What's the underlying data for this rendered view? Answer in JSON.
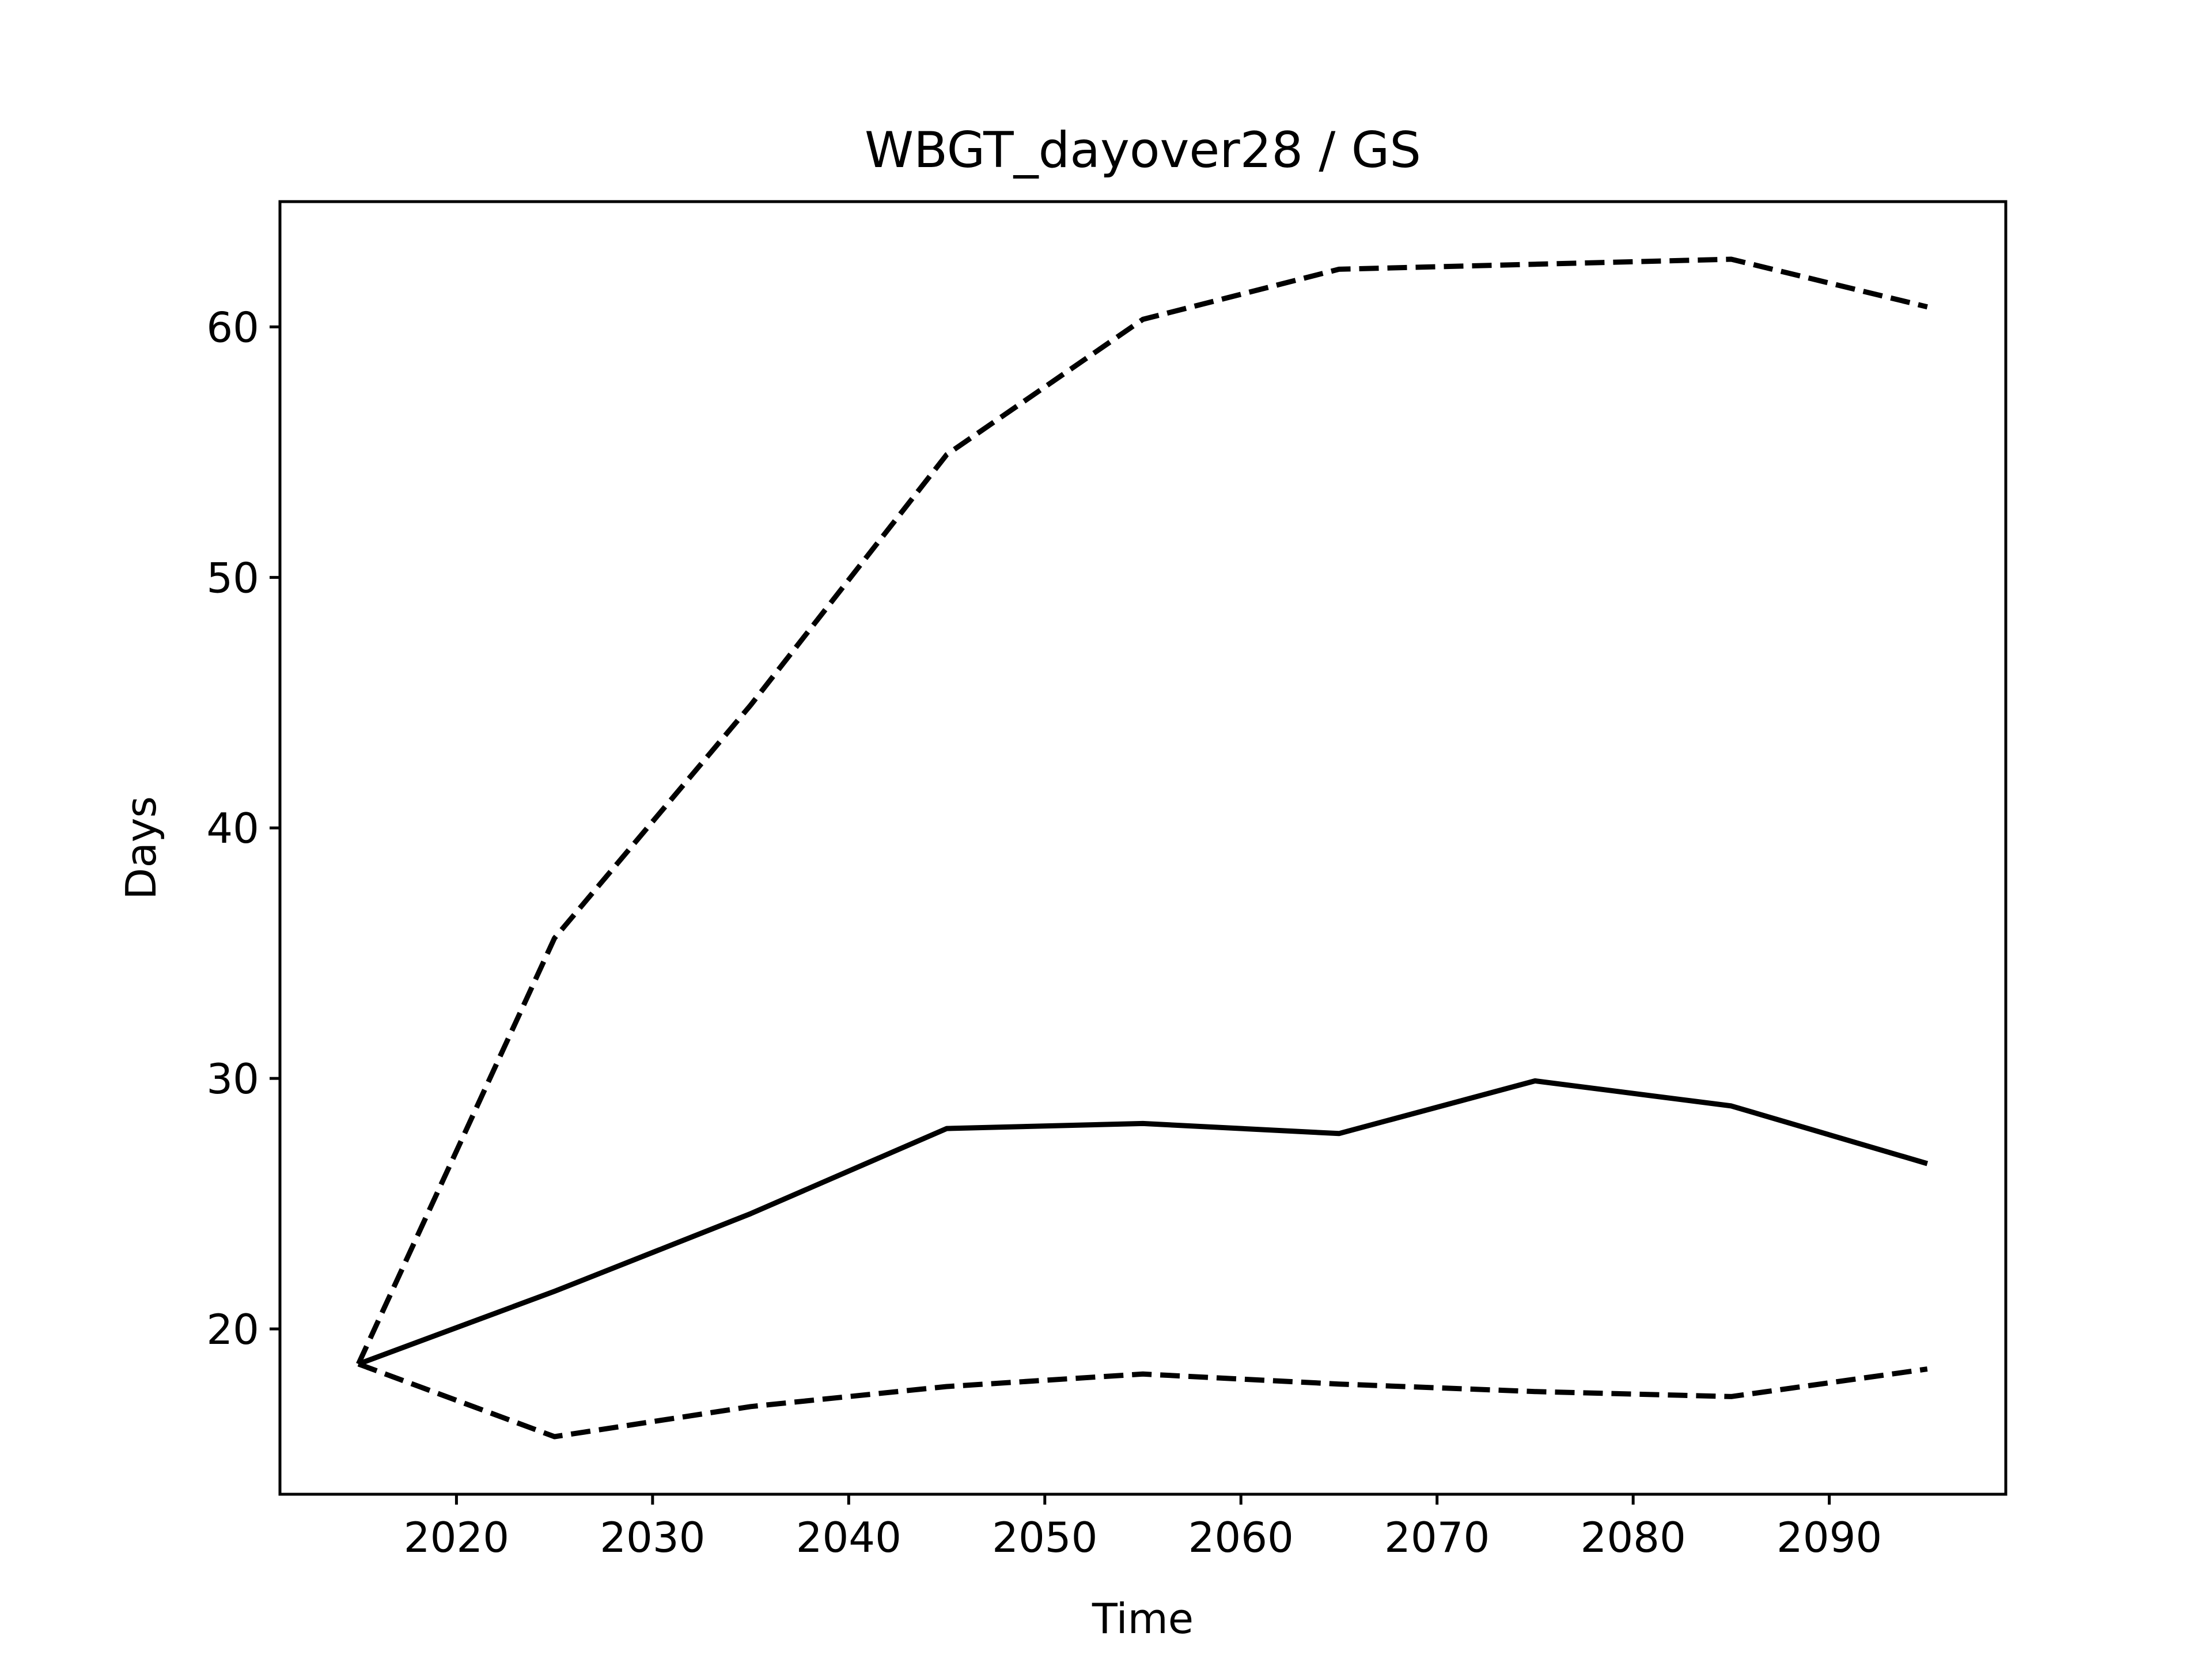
{
  "chart_data": {
    "type": "line",
    "title": "WBGT_dayover28 / GS",
    "xlabel": "Time",
    "ylabel": "Days",
    "xlim": [
      2011,
      2099
    ],
    "ylim": [
      13.4,
      65
    ],
    "xticks": [
      2020,
      2030,
      2040,
      2050,
      2060,
      2070,
      2080,
      2090
    ],
    "yticks": [
      20,
      30,
      40,
      50,
      60
    ],
    "grid": false,
    "x": [
      2015,
      2025,
      2035,
      2045,
      2055,
      2065,
      2075,
      2085,
      2095
    ],
    "series": [
      {
        "style": "dashed",
        "color": "#000000",
        "values": [
          18.6,
          35.6,
          44.9,
          54.9,
          60.3,
          62.3,
          62.5,
          62.7,
          60.8
        ]
      },
      {
        "style": "solid",
        "color": "#000000",
        "values": [
          18.6,
          21.5,
          24.6,
          28.0,
          28.2,
          27.8,
          29.9,
          28.9,
          26.6
        ]
      },
      {
        "style": "dashed",
        "color": "#000000",
        "values": [
          18.6,
          15.7,
          16.9,
          17.7,
          18.2,
          17.8,
          17.5,
          17.3,
          18.4
        ]
      }
    ]
  }
}
